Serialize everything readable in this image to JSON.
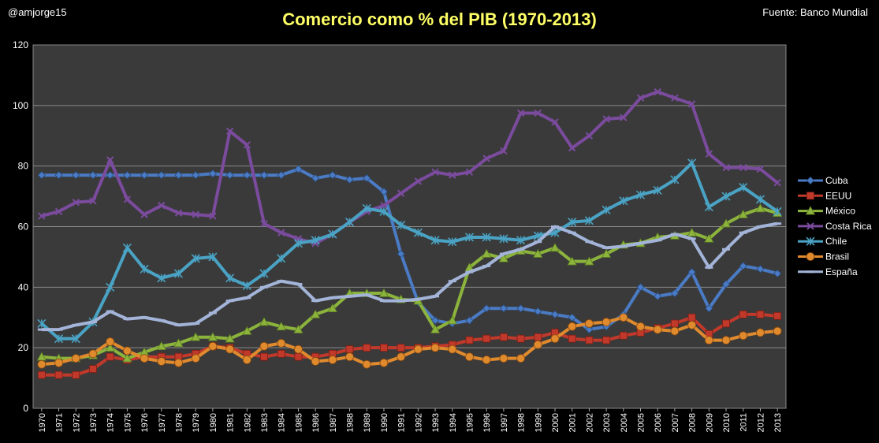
{
  "header": {
    "handle": "@amjorge15",
    "source": "Fuente: Banco Mundial",
    "title": "Comercio como % del PIB (1970-2013)"
  },
  "chart_data": {
    "type": "line",
    "title": "Comercio como % del PIB (1970-2013)",
    "xlabel": "",
    "ylabel": "",
    "ylim": [
      0,
      120
    ],
    "yticks": [
      0,
      20,
      40,
      60,
      80,
      100,
      120
    ],
    "grid": true,
    "legend_position": "right",
    "background": "#3a3a3a",
    "x": [
      "1970",
      "1971",
      "1972",
      "1973",
      "1974",
      "1975",
      "1976",
      "1977",
      "1978",
      "1979",
      "1980",
      "1981",
      "1982",
      "1983",
      "1984",
      "1985",
      "1986",
      "1987",
      "1988",
      "1989",
      "1990",
      "1991",
      "1992",
      "1993",
      "1994",
      "1995",
      "1996",
      "1997",
      "1998",
      "1999",
      "2000",
      "2001",
      "2002",
      "2003",
      "2004",
      "2005",
      "2006",
      "2007",
      "2008",
      "2009",
      "2010",
      "2011",
      "2012",
      "2013"
    ],
    "series": [
      {
        "name": "Cuba",
        "color": "#4a7bc4",
        "marker": "diamond",
        "values": [
          77,
          77,
          77,
          77,
          77,
          77,
          77,
          77,
          77,
          77,
          77.5,
          77,
          77,
          77,
          77,
          79,
          76,
          77,
          75.5,
          76,
          71.5,
          51,
          35,
          29,
          28,
          29,
          33,
          33,
          33,
          32,
          31,
          30,
          26,
          27,
          31,
          40,
          37,
          38,
          45,
          33,
          41,
          47,
          46,
          44.5
        ]
      },
      {
        "name": "EEUU",
        "color": "#c0392b",
        "marker": "square",
        "values": [
          11,
          11,
          11,
          13,
          17,
          16,
          17,
          17,
          17,
          18,
          20.5,
          20,
          18,
          17,
          18,
          17,
          17,
          18,
          19.5,
          20,
          20,
          20,
          20,
          20.5,
          21,
          22.5,
          23,
          23.5,
          23,
          23.5,
          25,
          23,
          22.5,
          22.5,
          24,
          25,
          26.5,
          28,
          30,
          24.5,
          28,
          31,
          31,
          30.5
        ]
      },
      {
        "name": "México",
        "color": "#8cb43c",
        "marker": "triangle",
        "values": [
          17,
          16.5,
          16.5,
          17.5,
          20,
          16.5,
          18.5,
          20.5,
          21.5,
          23.5,
          23.5,
          23,
          25.5,
          28.5,
          27,
          26,
          31,
          33,
          38,
          38,
          38,
          36,
          35.5,
          26,
          29,
          46.5,
          51,
          49.5,
          52,
          51,
          53,
          48.5,
          48.5,
          51,
          54,
          54.5,
          56.5,
          57,
          58,
          56,
          61,
          64,
          66,
          64.5
        ]
      },
      {
        "name": "Costa Rica",
        "color": "#7b4b9e",
        "marker": "x",
        "values": [
          63.5,
          65,
          68,
          68.5,
          82,
          69,
          64,
          67,
          64.5,
          64,
          63.5,
          91.5,
          87,
          61,
          58,
          56,
          54.5,
          57.5,
          61.5,
          65,
          67,
          71,
          75,
          78,
          77,
          78,
          82.5,
          85,
          97.5,
          97.5,
          94.5,
          86,
          90,
          95.5,
          96,
          102.5,
          104.5,
          102.5,
          100.5,
          84,
          79.5,
          79.5,
          79,
          74.5
        ]
      },
      {
        "name": "Chile",
        "color": "#4aa3c4",
        "marker": "star",
        "values": [
          28,
          23,
          23,
          28.5,
          40,
          53,
          46,
          43,
          44.5,
          49.5,
          50,
          43,
          40.5,
          44.5,
          49.5,
          54.5,
          55.5,
          57.5,
          61.5,
          66,
          65,
          60.5,
          58,
          55.5,
          55,
          56.5,
          56.5,
          56,
          55.5,
          57,
          58,
          61.5,
          62,
          65.5,
          68.5,
          70.5,
          72,
          75.5,
          81,
          66.5,
          70,
          73,
          69,
          65
        ]
      },
      {
        "name": "Brasil",
        "color": "#e08a2e",
        "marker": "circle",
        "values": [
          14.5,
          15,
          16.5,
          18,
          22,
          19,
          16.5,
          15.5,
          15,
          16.5,
          20.5,
          19.5,
          16,
          20.5,
          21.5,
          19.5,
          15.5,
          16,
          17,
          14.5,
          15,
          17,
          19.5,
          20,
          19.5,
          17,
          16,
          16.5,
          16.5,
          21,
          23,
          27,
          28,
          28.5,
          30,
          27,
          26,
          25.5,
          27.5,
          22.5,
          22.5,
          24,
          25,
          25.5
        ]
      },
      {
        "name": "España",
        "color": "#a3b4d8",
        "marker": "dash",
        "values": [
          26,
          26,
          27.5,
          28.5,
          32,
          29.5,
          30,
          29,
          27.5,
          28,
          31.5,
          35.5,
          36.5,
          40,
          42,
          41,
          35.5,
          36.5,
          37,
          37.5,
          35.5,
          35.5,
          36,
          37,
          42,
          45,
          47,
          51,
          52.5,
          55,
          60,
          58,
          55,
          53,
          53.5,
          54.5,
          55.5,
          57.5,
          56,
          46.5,
          52.5,
          58,
          60,
          61
        ]
      }
    ]
  }
}
